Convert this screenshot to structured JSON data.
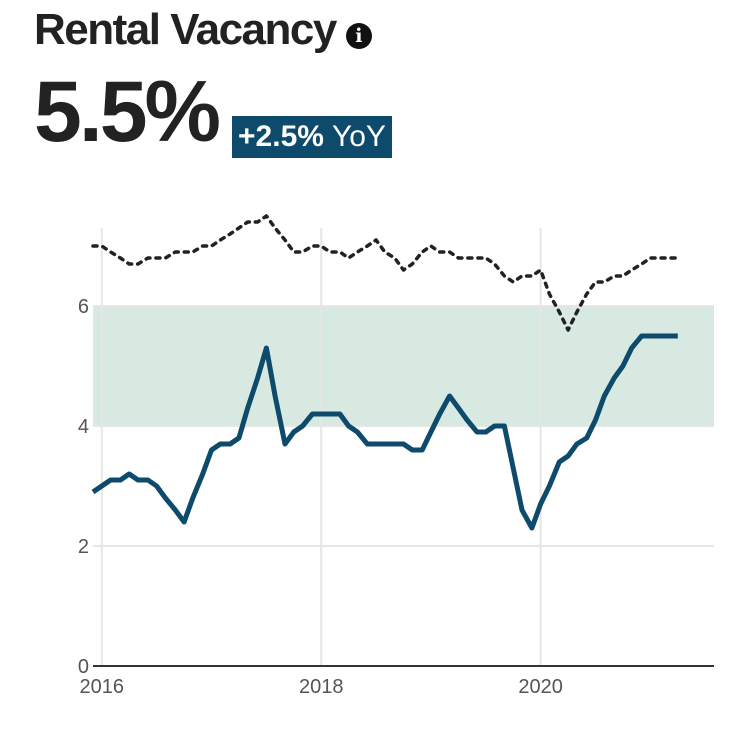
{
  "header": {
    "title": "Rental Vacancy",
    "value": "5.5%",
    "change": "+2.5%",
    "period": "YoY",
    "info_icon": "info-icon"
  },
  "colors": {
    "primary_line": "#0d4a6b",
    "reference_line": "#222222",
    "band_fill": "#d8e9e2",
    "grid": "#e6e6e6",
    "badge_bg": "#0d4a6b"
  },
  "chart_data": {
    "type": "line",
    "title": "",
    "xlabel": "",
    "ylabel": "",
    "x_ticks": [
      "2016",
      "2018",
      "2020"
    ],
    "y_ticks": [
      "0",
      "2",
      "4",
      "6"
    ],
    "xlim": [
      2015.92,
      2021.58
    ],
    "ylim": [
      0,
      7.6
    ],
    "grid": true,
    "band": {
      "from": 4,
      "to": 6
    },
    "series": [
      {
        "style": "solid",
        "x": [
          2015.92,
          2016.0,
          2016.08,
          2016.17,
          2016.25,
          2016.33,
          2016.42,
          2016.5,
          2016.58,
          2016.67,
          2016.75,
          2016.83,
          2016.92,
          2017.0,
          2017.08,
          2017.17,
          2017.25,
          2017.33,
          2017.42,
          2017.5,
          2017.58,
          2017.67,
          2017.75,
          2017.83,
          2017.92,
          2018.0,
          2018.08,
          2018.17,
          2018.25,
          2018.33,
          2018.42,
          2018.5,
          2018.58,
          2018.67,
          2018.75,
          2018.83,
          2018.92,
          2019.0,
          2019.08,
          2019.17,
          2019.25,
          2019.33,
          2019.42,
          2019.5,
          2019.58,
          2019.67,
          2019.75,
          2019.83,
          2019.92,
          2020.0,
          2020.08,
          2020.17,
          2020.25,
          2020.33,
          2020.42,
          2020.5,
          2020.58,
          2020.67,
          2020.75,
          2020.83,
          2020.92,
          2021.0,
          2021.08,
          2021.17,
          2021.25
        ],
        "y": [
          2.9,
          3.0,
          3.1,
          3.1,
          3.2,
          3.1,
          3.1,
          3.0,
          2.8,
          2.6,
          2.4,
          2.8,
          3.2,
          3.6,
          3.7,
          3.7,
          3.8,
          4.3,
          4.8,
          5.3,
          4.5,
          3.7,
          3.9,
          4.0,
          4.2,
          4.2,
          4.2,
          4.2,
          4.0,
          3.9,
          3.7,
          3.7,
          3.7,
          3.7,
          3.7,
          3.6,
          3.6,
          3.9,
          4.2,
          4.5,
          4.3,
          4.1,
          3.9,
          3.9,
          4.0,
          4.0,
          3.3,
          2.6,
          2.3,
          2.7,
          3.0,
          3.4,
          3.5,
          3.7,
          3.8,
          4.1,
          4.5,
          4.8,
          5.0,
          5.3,
          5.5,
          5.5,
          5.5,
          5.5,
          5.5
        ]
      },
      {
        "style": "dotted",
        "x": [
          2015.92,
          2016.0,
          2016.08,
          2016.17,
          2016.25,
          2016.33,
          2016.42,
          2016.5,
          2016.58,
          2016.67,
          2016.75,
          2016.83,
          2016.92,
          2017.0,
          2017.08,
          2017.17,
          2017.25,
          2017.33,
          2017.42,
          2017.5,
          2017.58,
          2017.67,
          2017.75,
          2017.83,
          2017.92,
          2018.0,
          2018.08,
          2018.17,
          2018.25,
          2018.33,
          2018.42,
          2018.5,
          2018.58,
          2018.67,
          2018.75,
          2018.83,
          2018.92,
          2019.0,
          2019.08,
          2019.17,
          2019.25,
          2019.33,
          2019.42,
          2019.5,
          2019.58,
          2019.67,
          2019.75,
          2019.83,
          2019.92,
          2020.0,
          2020.08,
          2020.17,
          2020.25,
          2020.33,
          2020.42,
          2020.5,
          2020.58,
          2020.67,
          2020.75,
          2020.83,
          2020.92,
          2021.0,
          2021.08,
          2021.17,
          2021.25
        ],
        "y": [
          7.0,
          7.0,
          6.9,
          6.8,
          6.7,
          6.7,
          6.8,
          6.8,
          6.8,
          6.9,
          6.9,
          6.9,
          7.0,
          7.0,
          7.1,
          7.2,
          7.3,
          7.4,
          7.4,
          7.5,
          7.3,
          7.1,
          6.9,
          6.9,
          7.0,
          7.0,
          6.9,
          6.9,
          6.8,
          6.9,
          7.0,
          7.1,
          6.9,
          6.8,
          6.6,
          6.7,
          6.9,
          7.0,
          6.9,
          6.9,
          6.8,
          6.8,
          6.8,
          6.8,
          6.7,
          6.5,
          6.4,
          6.5,
          6.5,
          6.6,
          6.2,
          5.9,
          5.6,
          5.9,
          6.2,
          6.4,
          6.4,
          6.5,
          6.5,
          6.6,
          6.7,
          6.8,
          6.8,
          6.8,
          6.8
        ]
      }
    ]
  }
}
